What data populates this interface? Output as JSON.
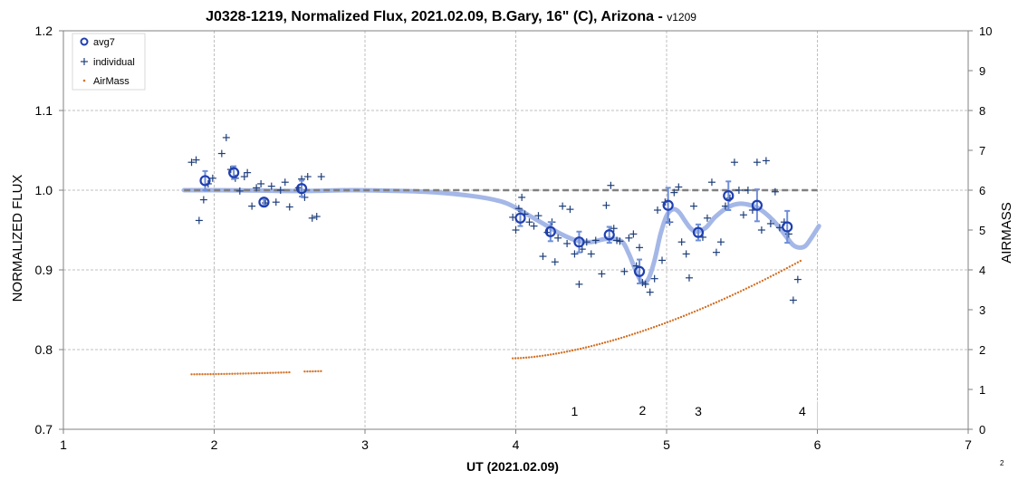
{
  "chart_data": {
    "type": "scatter",
    "title": "J0328-1219, Normalized Flux, 2021.02.09, B.Gary, 16\" (C), Arizona - ",
    "title_suffix": "v1209",
    "xlabel": "UT (2021.02.09)",
    "ylabel": "NORMALIZED FLUX",
    "y2label": "AIRMASS",
    "xlim": [
      1,
      7
    ],
    "ylim": [
      0.7,
      1.2
    ],
    "y2lim": [
      0,
      10
    ],
    "x_ticks": [
      "1",
      "2",
      "3",
      "4",
      "5",
      "6",
      "7"
    ],
    "y_ticks": [
      "0.7",
      "0.8",
      "0.9",
      "1.0",
      "1.1",
      "1.2"
    ],
    "y2_ticks": [
      "0",
      "1",
      "2",
      "3",
      "4",
      "5",
      "6",
      "7",
      "8",
      "9",
      "10"
    ],
    "grid": true,
    "legend_position": "top-left",
    "legend": [
      "avg7",
      "individual",
      "AirMass"
    ],
    "colors": {
      "avg7": "#1f3fb0",
      "individual": "#1f3f7a",
      "airmass": "#d4742a",
      "model": "#9fb3e6",
      "baseline": "#808080",
      "grid": "#bfbfbf"
    },
    "reference_line": {
      "y": 1.0,
      "x_range": [
        1.8,
        6.0
      ],
      "style": "dashed"
    },
    "annotations": [
      {
        "text": "1",
        "x": 4.39,
        "y": 0.717
      },
      {
        "text": "2",
        "x": 4.84,
        "y": 0.718
      },
      {
        "text": "3",
        "x": 5.21,
        "y": 0.717
      },
      {
        "text": "4",
        "x": 5.9,
        "y": 0.717
      }
    ],
    "corner_label": "2",
    "series": [
      {
        "name": "avg7",
        "marker": "circle",
        "points": [
          {
            "x": 1.94,
            "y": 1.012,
            "err": 0.012
          },
          {
            "x": 2.13,
            "y": 1.022,
            "err": 0.008
          },
          {
            "x": 2.33,
            "y": 0.985,
            "err": 0.004
          },
          {
            "x": 2.58,
            "y": 1.002,
            "err": 0.01
          },
          {
            "x": 4.03,
            "y": 0.965,
            "err": 0.01
          },
          {
            "x": 4.23,
            "y": 0.948,
            "err": 0.012
          },
          {
            "x": 4.42,
            "y": 0.935,
            "err": 0.013
          },
          {
            "x": 4.62,
            "y": 0.944,
            "err": 0.01
          },
          {
            "x": 4.82,
            "y": 0.898,
            "err": 0.015
          },
          {
            "x": 5.01,
            "y": 0.981,
            "err": 0.022
          },
          {
            "x": 5.21,
            "y": 0.947,
            "err": 0.01
          },
          {
            "x": 5.41,
            "y": 0.993,
            "err": 0.018
          },
          {
            "x": 5.6,
            "y": 0.981,
            "err": 0.02
          },
          {
            "x": 5.8,
            "y": 0.954,
            "err": 0.02
          }
        ]
      },
      {
        "name": "individual",
        "marker": "plus",
        "points": [
          [
            1.85,
            1.035
          ],
          [
            1.88,
            1.038
          ],
          [
            1.9,
            0.962
          ],
          [
            1.93,
            0.988
          ],
          [
            1.96,
            1.008
          ],
          [
            1.99,
            1.015
          ],
          [
            2.05,
            1.046
          ],
          [
            2.08,
            1.066
          ],
          [
            2.11,
            1.026
          ],
          [
            2.14,
            1.015
          ],
          [
            2.17,
            0.999
          ],
          [
            2.2,
            1.017
          ],
          [
            2.22,
            1.022
          ],
          [
            2.25,
            0.98
          ],
          [
            2.28,
            1.003
          ],
          [
            2.31,
            1.008
          ],
          [
            2.34,
            0.984
          ],
          [
            2.38,
            1.005
          ],
          [
            2.41,
            0.985
          ],
          [
            2.44,
            1.0
          ],
          [
            2.47,
            1.01
          ],
          [
            2.5,
            0.979
          ],
          [
            2.56,
            1.003
          ],
          [
            2.58,
            1.014
          ],
          [
            2.6,
            0.991
          ],
          [
            2.62,
            1.017
          ],
          [
            2.65,
            0.965
          ],
          [
            2.68,
            0.967
          ],
          [
            2.71,
            1.017
          ],
          [
            3.98,
            0.966
          ],
          [
            4.0,
            0.95
          ],
          [
            4.02,
            0.977
          ],
          [
            4.04,
            0.991
          ],
          [
            4.06,
            0.97
          ],
          [
            4.09,
            0.96
          ],
          [
            4.12,
            0.955
          ],
          [
            4.15,
            0.968
          ],
          [
            4.18,
            0.917
          ],
          [
            4.21,
            0.947
          ],
          [
            4.24,
            0.96
          ],
          [
            4.26,
            0.91
          ],
          [
            4.28,
            0.94
          ],
          [
            4.31,
            0.98
          ],
          [
            4.34,
            0.933
          ],
          [
            4.36,
            0.976
          ],
          [
            4.39,
            0.92
          ],
          [
            4.42,
            0.882
          ],
          [
            4.44,
            0.926
          ],
          [
            4.47,
            0.935
          ],
          [
            4.5,
            0.92
          ],
          [
            4.53,
            0.937
          ],
          [
            4.57,
            0.895
          ],
          [
            4.6,
            0.981
          ],
          [
            4.63,
            1.006
          ],
          [
            4.65,
            0.952
          ],
          [
            4.67,
            0.937
          ],
          [
            4.69,
            0.936
          ],
          [
            4.72,
            0.898
          ],
          [
            4.75,
            0.94
          ],
          [
            4.78,
            0.945
          ],
          [
            4.8,
            0.905
          ],
          [
            4.82,
            0.928
          ],
          [
            4.84,
            0.884
          ],
          [
            4.86,
            0.882
          ],
          [
            4.89,
            0.872
          ],
          [
            4.92,
            0.889
          ],
          [
            4.94,
            0.975
          ],
          [
            4.97,
            0.912
          ],
          [
            4.99,
            0.985
          ],
          [
            5.02,
            0.96
          ],
          [
            5.05,
            0.997
          ],
          [
            5.08,
            1.004
          ],
          [
            5.1,
            0.935
          ],
          [
            5.13,
            0.92
          ],
          [
            5.15,
            0.89
          ],
          [
            5.18,
            0.98
          ],
          [
            5.21,
            0.952
          ],
          [
            5.24,
            0.941
          ],
          [
            5.27,
            0.965
          ],
          [
            5.3,
            1.01
          ],
          [
            5.33,
            0.922
          ],
          [
            5.36,
            0.935
          ],
          [
            5.39,
            0.98
          ],
          [
            5.42,
            0.99
          ],
          [
            5.45,
            1.035
          ],
          [
            5.48,
            1.0
          ],
          [
            5.51,
            0.969
          ],
          [
            5.54,
            1.0
          ],
          [
            5.57,
            0.975
          ],
          [
            5.6,
            1.035
          ],
          [
            5.63,
            0.95
          ],
          [
            5.66,
            1.037
          ],
          [
            5.69,
            0.958
          ],
          [
            5.72,
            0.998
          ],
          [
            5.75,
            0.953
          ],
          [
            5.78,
            0.96
          ],
          [
            5.81,
            0.945
          ],
          [
            5.84,
            0.862
          ],
          [
            5.87,
            0.888
          ]
        ]
      },
      {
        "name": "AirMass",
        "marker": "dot",
        "axis": "right",
        "segments": [
          {
            "x_start": 1.85,
            "x_end": 2.5,
            "y_start": 1.38,
            "y_end": 1.43
          },
          {
            "x_start": 2.6,
            "x_end": 2.72,
            "y_start": 1.45,
            "y_end": 1.46
          },
          {
            "x_start": 3.98,
            "x_end": 5.9,
            "y_start": 1.78,
            "y_end": 4.25
          }
        ]
      },
      {
        "name": "model",
        "marker": "line",
        "points": [
          [
            1.8,
            1.0
          ],
          [
            2.0,
            1.0
          ],
          [
            2.3,
            0.9995
          ],
          [
            2.6,
            0.999
          ],
          [
            2.9,
            1.0
          ],
          [
            3.1,
            0.9995
          ],
          [
            3.4,
            0.998
          ],
          [
            3.7,
            0.993
          ],
          [
            3.9,
            0.986
          ],
          [
            4.0,
            0.978
          ],
          [
            4.1,
            0.967
          ],
          [
            4.2,
            0.956
          ],
          [
            4.3,
            0.945
          ],
          [
            4.4,
            0.937
          ],
          [
            4.5,
            0.935
          ],
          [
            4.6,
            0.939
          ],
          [
            4.7,
            0.936
          ],
          [
            4.75,
            0.92
          ],
          [
            4.8,
            0.897
          ],
          [
            4.84,
            0.884
          ],
          [
            4.88,
            0.889
          ],
          [
            4.92,
            0.912
          ],
          [
            4.96,
            0.945
          ],
          [
            5.0,
            0.968
          ],
          [
            5.04,
            0.976
          ],
          [
            5.08,
            0.973
          ],
          [
            5.12,
            0.962
          ],
          [
            5.16,
            0.952
          ],
          [
            5.2,
            0.948
          ],
          [
            5.26,
            0.953
          ],
          [
            5.32,
            0.966
          ],
          [
            5.4,
            0.978
          ],
          [
            5.48,
            0.983
          ],
          [
            5.56,
            0.981
          ],
          [
            5.62,
            0.976
          ],
          [
            5.68,
            0.967
          ],
          [
            5.74,
            0.955
          ],
          [
            5.8,
            0.94
          ],
          [
            5.84,
            0.931
          ],
          [
            5.88,
            0.928
          ],
          [
            5.92,
            0.93
          ],
          [
            5.96,
            0.94
          ],
          [
            6.01,
            0.955
          ]
        ]
      }
    ]
  }
}
